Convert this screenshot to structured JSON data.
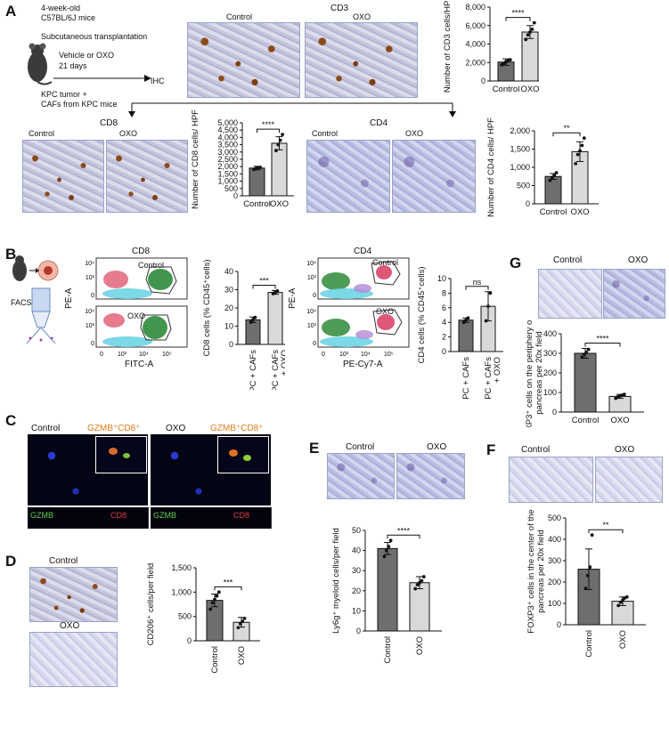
{
  "panels": {
    "A": {
      "letter": "A",
      "protocol": {
        "line1": "4-week-old",
        "line2": "C57BL/6J mice",
        "line3": "Subcutaneous transplantation",
        "line4": "Vehicle or OXO",
        "line5": "21 days",
        "ihc": "IHC",
        "line6": "KPC tumor +",
        "line7": "CAFs from KPC mice"
      },
      "cd3": {
        "title": "CD3",
        "control": "Control",
        "oxo": "OXO"
      },
      "cd8": {
        "title": "CD8",
        "control": "Control",
        "oxo": "OXO"
      },
      "cd4": {
        "title": "CD4",
        "control": "Control",
        "oxo": "OXO"
      }
    },
    "B": {
      "letter": "B",
      "facs": "FACS",
      "cd8": {
        "title": "CD8",
        "control": "Control",
        "oxo": "OXO",
        "xaxis": "FITC-A",
        "yaxis": "PE-A"
      },
      "cd4": {
        "title": "CD4",
        "control": "Control",
        "oxo": "OXO",
        "xaxis": "PE-Cy7-A",
        "yaxis": "PE-A"
      }
    },
    "C": {
      "letter": "C",
      "control": "Control",
      "oxo": "OXO",
      "gzmb_cd8": "GZMB⁺CD8⁺",
      "gzmb": "GZMB",
      "cd8": "CD8"
    },
    "D": {
      "letter": "D",
      "control": "Control",
      "oxo": "OXO"
    },
    "E": {
      "letter": "E",
      "control": "Control",
      "oxo": "OXO"
    },
    "F": {
      "letter": "F",
      "control": "Control",
      "oxo": "OXO"
    },
    "G": {
      "letter": "G",
      "control": "Control",
      "oxo": "OXO"
    }
  },
  "colors": {
    "control_bar": "#6e6e6e",
    "oxo_bar": "#d9d9d9"
  },
  "chart_data": [
    {
      "id": "cd3",
      "type": "bar",
      "categories": [
        "Control",
        "OXO"
      ],
      "values": [
        2050,
        5300
      ],
      "errors": [
        350,
        700
      ],
      "points": [
        [
          1750,
          1900,
          2100,
          2200,
          2300
        ],
        [
          4500,
          5000,
          5300,
          5600,
          6300
        ]
      ],
      "ylabel": "Number of CD3 cells/HPF",
      "yticks": [
        "0",
        "2,000",
        "4,000",
        "6,000",
        "8,000"
      ],
      "ylim": [
        0,
        8000
      ],
      "sig": "****"
    },
    {
      "id": "cd8",
      "type": "bar",
      "categories": [
        "Control",
        "OXO"
      ],
      "values": [
        1900,
        3600
      ],
      "errors": [
        120,
        450
      ],
      "points": [
        [
          1800,
          1870,
          1920,
          1950
        ],
        [
          3100,
          3500,
          3800,
          4200
        ]
      ],
      "ylabel": "Number of CD8 cells/ HPF",
      "yticks": [
        "0",
        "500",
        "1,000",
        "1,500",
        "2,000",
        "2,500",
        "3,000",
        "3,500",
        "4,000",
        "4,500",
        "5,000"
      ],
      "ylim": [
        0,
        5000
      ],
      "sig": "****"
    },
    {
      "id": "cd4",
      "type": "bar",
      "categories": [
        "Control",
        "OXO"
      ],
      "values": [
        750,
        1430
      ],
      "errors": [
        80,
        270
      ],
      "points": [
        [
          640,
          720,
          780,
          850
        ],
        [
          1100,
          1350,
          1450,
          1600,
          1800
        ]
      ],
      "ylabel": "Number of CD4 cells/ HPF",
      "yticks": [
        "0",
        "500",
        "1,000",
        "1,500",
        "2,000"
      ],
      "ylim": [
        0,
        2000
      ],
      "sig": "**"
    },
    {
      "id": "facs-cd8",
      "type": "bar",
      "categories": [
        "KPC + CAFs",
        "KPC + CAFs + OXO"
      ],
      "values": [
        13.5,
        28.5
      ],
      "errors": [
        1.5,
        1.0
      ],
      "points": [
        [
          12.2,
          13.6,
          14.8
        ],
        [
          27.8,
          28.5,
          29.3
        ]
      ],
      "ylabel": "CD8 cells (% CD45⁺cells)",
      "yticks": [
        "0",
        "10",
        "20",
        "30",
        "40"
      ],
      "ylim": [
        0,
        40
      ],
      "sig": "***"
    },
    {
      "id": "facs-cd4",
      "type": "bar",
      "categories": [
        "KPC + CAFs",
        "KPC + CAFs + OXO"
      ],
      "values": [
        4.3,
        6.2
      ],
      "errors": [
        0.3,
        2.0
      ],
      "points": [
        [
          4.0,
          4.3,
          4.6
        ],
        [
          4.2,
          6.2,
          8.0
        ]
      ],
      "ylabel": "CD4 cells (% CD45⁺cells)",
      "yticks": [
        "0",
        "2",
        "4",
        "6",
        "8",
        "10"
      ],
      "ylim": [
        0,
        10
      ],
      "sig": "ns"
    },
    {
      "id": "periphery",
      "type": "bar",
      "categories": [
        "Control",
        "OXO"
      ],
      "values": [
        300,
        80
      ],
      "errors": [
        25,
        10
      ],
      "points": [
        [
          280,
          295,
          305,
          320
        ],
        [
          70,
          78,
          82,
          86,
          90
        ]
      ],
      "ylabel": "FOXP3⁺ cells on the periphery of the pancreas per 20x field",
      "yticks": [
        "0",
        "100",
        "200",
        "300",
        "400"
      ],
      "ylim": [
        0,
        400
      ],
      "sig": "****"
    },
    {
      "id": "cd206",
      "type": "bar",
      "categories": [
        "Control",
        "OXO"
      ],
      "values": [
        830,
        380
      ],
      "errors": [
        130,
        100
      ],
      "points": [
        [
          650,
          780,
          850,
          920,
          1000
        ],
        [
          270,
          350,
          400,
          460
        ]
      ],
      "ylabel": "CD206⁺ cells/per field",
      "yticks": [
        "0",
        "500",
        "1,000",
        "1,500"
      ],
      "ylim": [
        0,
        1500
      ],
      "sig": "***"
    },
    {
      "id": "ly6g",
      "type": "bar",
      "categories": [
        "Control",
        "OXO"
      ],
      "values": [
        41,
        24
      ],
      "errors": [
        3,
        3
      ],
      "points": [
        [
          37,
          40,
          42,
          45
        ],
        [
          21,
          23,
          24,
          25,
          27
        ]
      ],
      "ylabel": "Ly6g⁺ myeloid cells/per field",
      "yticks": [
        "0",
        "10",
        "20",
        "30",
        "40",
        "50"
      ],
      "ylim": [
        0,
        50
      ],
      "sig": "****"
    },
    {
      "id": "center",
      "type": "bar",
      "categories": [
        "Control",
        "OXO"
      ],
      "values": [
        260,
        110
      ],
      "errors": [
        95,
        20
      ],
      "points": [
        [
          170,
          230,
          270,
          420
        ],
        [
          90,
          105,
          115,
          125,
          130
        ]
      ],
      "ylabel": "FOXP3⁺ cells in the center of the pancreas per 20x field",
      "yticks": [
        "0",
        "100",
        "200",
        "300",
        "400",
        "500"
      ],
      "ylim": [
        0,
        500
      ],
      "sig": "**"
    }
  ],
  "facs_ticks": {
    "y": [
      "10⁴",
      "10³",
      "0"
    ],
    "x": [
      "0",
      "10³",
      "10⁴",
      "10⁵"
    ]
  }
}
